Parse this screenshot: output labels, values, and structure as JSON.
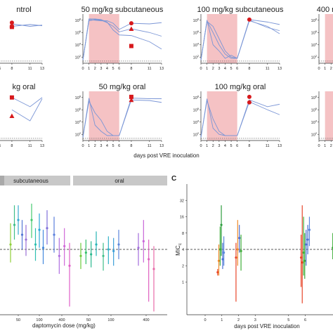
{
  "figure": {
    "xlabel_top": "days post VRE inoculation",
    "panel_letter_c": "C"
  },
  "colors": {
    "line": "#7b96d6",
    "marker": "#d7191c",
    "shade": "#f5c2c4",
    "strip": "#c8c8c8"
  },
  "chart_data": [
    {
      "type": "line",
      "section": "top-left timecourse panels (log10 VRE density vs day)",
      "yscale": "log",
      "y_ticks": [
        "10^2",
        "10^4",
        "10^6",
        "10^8"
      ],
      "x_ticks": [
        0,
        1,
        2,
        3,
        4,
        5,
        6,
        8,
        11,
        13
      ],
      "xlim": [
        0,
        13
      ],
      "ylim_log10": [
        1,
        9
      ],
      "panels": [
        {
          "title": "ntrol",
          "shade": null,
          "series": [
            {
              "x": [
                8,
                11,
                13
              ],
              "y_log10": [
                7.0,
                7.3,
                7.1
              ]
            },
            {
              "x": [
                8,
                11,
                13
              ],
              "y_log10": [
                7.4,
                7.0,
                7.2
              ]
            }
          ],
          "markers": [
            {
              "shape": "circle",
              "x": 8,
              "y_log10": 7.6
            },
            {
              "shape": "triangle",
              "x": 8,
              "y_log10": 7.2
            },
            {
              "shape": "square",
              "x": 8,
              "y_log10": 6.9
            }
          ]
        },
        {
          "title": "50 mg/kg subcutaneous",
          "shade": [
            1,
            6
          ],
          "series": [
            {
              "x": [
                0,
                1,
                2,
                3,
                4,
                5,
                6,
                8,
                11,
                13
              ],
              "y_log10": [
                1.5,
                8.1,
                8.0,
                7.9,
                7.9,
                7.5,
                6.5,
                7.5,
                7.4,
                7.6
              ]
            },
            {
              "x": [
                0,
                1,
                2,
                3,
                4,
                5,
                6,
                8,
                11,
                13
              ],
              "y_log10": [
                1.5,
                7.9,
                8.1,
                8.0,
                7.6,
                7.0,
                6.1,
                6.6,
                6.0,
                5.4
              ]
            },
            {
              "x": [
                0,
                1,
                2,
                3,
                4,
                5,
                6,
                8,
                11,
                13
              ],
              "y_log10": [
                1.5,
                8.2,
                8.2,
                8.1,
                7.7,
                6.4,
                5.6,
                5.5,
                4.5,
                3.3
              ]
            }
          ],
          "markers": [
            {
              "shape": "circle",
              "x": 8,
              "y_log10": 7.5
            },
            {
              "shape": "triangle",
              "x": 8,
              "y_log10": 6.6
            },
            {
              "shape": "square",
              "x": 8,
              "y_log10": 3.8
            }
          ]
        },
        {
          "title": "100 mg/kg subcutaneous",
          "shade": [
            1,
            6
          ],
          "series": [
            {
              "x": [
                0,
                1,
                2,
                3,
                4,
                5,
                6,
                8,
                11,
                13
              ],
              "y_log10": [
                1.5,
                8.0,
                4.0,
                3.0,
                1.8,
                2.3,
                1.8,
                8.1,
                7.7,
                7.3
              ]
            },
            {
              "x": [
                0,
                1,
                2,
                3,
                4,
                5,
                6,
                8,
                11,
                13
              ],
              "y_log10": [
                1.5,
                7.8,
                7.0,
                5.0,
                3.0,
                2.0,
                1.8,
                8.0,
                6.8,
                6.3
              ]
            },
            {
              "x": [
                0,
                1,
                2,
                3,
                4,
                5,
                6,
                8,
                11,
                13
              ],
              "y_log10": [
                1.5,
                7.9,
                6.0,
                4.0,
                2.5,
                1.8,
                1.8,
                7.9,
                7.0,
                5.8
              ]
            }
          ],
          "markers": [
            {
              "shape": "circle",
              "x": 8,
              "y_log10": 8.1
            }
          ]
        },
        {
          "title": "400 m",
          "shade": [
            1,
            6
          ],
          "series": [],
          "markers": []
        },
        {
          "title": "kg oral",
          "shade": null,
          "series": [
            {
              "x": [
                8,
                11,
                13
              ],
              "y_log10": [
                8.0,
                6.5,
                8.0
              ]
            },
            {
              "x": [
                8,
                11,
                13
              ],
              "y_log10": [
                6.0,
                4.2,
                7.8
              ]
            }
          ],
          "markers": [
            {
              "shape": "square",
              "x": 8,
              "y_log10": 8.0
            },
            {
              "shape": "triangle",
              "x": 8,
              "y_log10": 5.0
            }
          ]
        },
        {
          "title": "50 mg/kg oral",
          "shade": [
            1,
            6
          ],
          "series": [
            {
              "x": [
                0,
                1,
                2,
                3,
                4,
                5,
                6,
                8,
                11,
                13
              ],
              "y_log10": [
                1.5,
                7.9,
                3.5,
                2.5,
                1.8,
                1.8,
                1.8,
                7.9,
                7.8,
                7.8
              ]
            },
            {
              "x": [
                0,
                1,
                2,
                3,
                4,
                5,
                6,
                8,
                11,
                13
              ],
              "y_log10": [
                1.5,
                7.4,
                5.5,
                4.3,
                2.5,
                1.8,
                1.8,
                7.6,
                7.5,
                7.2
              ]
            }
          ],
          "markers": [
            {
              "shape": "square",
              "x": 8,
              "y_log10": 8.1
            },
            {
              "shape": "triangle",
              "x": 8,
              "y_log10": 7.6
            }
          ]
        },
        {
          "title": "100 mg/kg oral",
          "shade": [
            1,
            6
          ],
          "series": [
            {
              "x": [
                0,
                1,
                2,
                3,
                4,
                5,
                6,
                8,
                11,
                13
              ],
              "y_log10": [
                1.5,
                7.8,
                3.0,
                2.0,
                1.8,
                1.8,
                1.8,
                7.6,
                6.5,
                6.9
              ]
            },
            {
              "x": [
                0,
                1,
                2,
                3,
                4,
                5,
                6,
                8,
                11,
                13
              ],
              "y_log10": [
                1.5,
                7.5,
                4.5,
                2.5,
                1.8,
                1.8,
                1.8,
                7.3,
                6.0,
                5.2
              ]
            }
          ],
          "markers": [
            {
              "shape": "circle",
              "x": 8,
              "y_log10": 8.1
            },
            {
              "shape": "circle",
              "x": 8,
              "y_log10": 7.2
            }
          ]
        },
        {
          "title": "",
          "shade": [
            1,
            6
          ],
          "series": [],
          "markers": []
        }
      ]
    },
    {
      "type": "scatter",
      "section": "bottom-left panel B (MIC vs daptomycin dose)",
      "strip_labels": [
        "subcutaneous",
        "oral"
      ],
      "xlabel": "daptomycin dose (mg/kg)",
      "x_ticks": [
        "50",
        "100",
        "400",
        "50",
        "100",
        "400"
      ],
      "ylim_log2": [
        -2,
        6
      ],
      "reference_log2": 2,
      "groups": [
        {
          "route": "subcutaneous",
          "dose": 50,
          "points": [
            {
              "c": "#8fcf3a",
              "y": 2.3,
              "lo": 1.2,
              "hi": 3.6
            },
            {
              "c": "#3fbf8a",
              "y": 3.5,
              "lo": 2.6,
              "hi": 4.7
            },
            {
              "c": "#37a9d1",
              "y": 3.8,
              "lo": 2.9,
              "hi": 4.7
            },
            {
              "c": "#5577d5",
              "y": 2.9,
              "lo": 2.0,
              "hi": 3.8
            },
            {
              "c": "#9b6fd6",
              "y": 2.6,
              "lo": 1.6,
              "hi": 3.5
            }
          ]
        },
        {
          "route": "subcutaneous",
          "dose": 100,
          "points": [
            {
              "c": "#44c96e",
              "y": 3.8,
              "lo": 2.7,
              "hi": 4.8
            },
            {
              "c": "#2fbfb0",
              "y": 2.3,
              "lo": 1.3,
              "hi": 3.3
            },
            {
              "c": "#29a7d8",
              "y": 3.2,
              "lo": 2.1,
              "hi": 4.2
            },
            {
              "c": "#4488dd",
              "y": 2.1,
              "lo": 1.1,
              "hi": 3.2
            },
            {
              "c": "#7f6fda",
              "y": 3.3,
              "lo": 2.3,
              "hi": 4.4
            }
          ]
        },
        {
          "route": "subcutaneous",
          "dose": 400,
          "points": [
            {
              "c": "#5b7fdc",
              "y": 2.9,
              "lo": 1.8,
              "hi": 4.0
            },
            {
              "c": "#b06fe0",
              "y": 1.6,
              "lo": 0.5,
              "hi": 2.7
            },
            {
              "c": "#d068d8",
              "y": 2.2,
              "lo": 1.0,
              "hi": 3.3
            },
            {
              "c": "#e05fc8",
              "y": 1.0,
              "lo": -1.5,
              "hi": 2.4
            }
          ]
        },
        {
          "route": "oral",
          "dose": 50,
          "points": [
            {
              "c": "#6ccb3a",
              "y": 1.6,
              "lo": 0.8,
              "hi": 2.4
            },
            {
              "c": "#34c06a",
              "y": 1.8,
              "lo": 1.1,
              "hi": 2.6
            },
            {
              "c": "#2ab88f",
              "y": 1.7,
              "lo": 0.9,
              "hi": 2.5
            },
            {
              "c": "#27b3b5",
              "y": 2.3,
              "lo": 1.6,
              "hi": 3.1
            }
          ]
        },
        {
          "route": "oral",
          "dose": 100,
          "points": [
            {
              "c": "#3fbf8a",
              "y": 1.6,
              "lo": 0.7,
              "hi": 2.4
            },
            {
              "c": "#33b3c8",
              "y": 2.0,
              "lo": 1.1,
              "hi": 2.8
            },
            {
              "c": "#3d9fd8",
              "y": 1.9,
              "lo": 1.0,
              "hi": 2.7
            },
            {
              "c": "#5a86db",
              "y": 2.3,
              "lo": 1.4,
              "hi": 3.2
            }
          ]
        },
        {
          "route": "oral",
          "dose": 400,
          "points": [
            {
              "c": "#a46fdc",
              "y": 2.1,
              "lo": 1.0,
              "hi": 3.0
            },
            {
              "c": "#c866d8",
              "y": 2.5,
              "lo": 1.2,
              "hi": 3.8
            },
            {
              "c": "#e060c0",
              "y": 1.4,
              "lo": -1.2,
              "hi": 2.6
            },
            {
              "c": "#e86aa8",
              "y": 0.8,
              "lo": -1.8,
              "hi": 2.2
            }
          ]
        }
      ]
    },
    {
      "type": "scatter",
      "section": "bottom-right panel C (MIC vs day)",
      "ylabel": "MIC_c",
      "xlabel": "days post VRE inoculation",
      "y_ticks": [
        "1",
        "2",
        "4",
        "8",
        "16",
        "32"
      ],
      "x_ticks": [
        "0",
        "1",
        "2",
        "3",
        "5",
        "6",
        "8"
      ],
      "reference": 4,
      "points": [
        {
          "x": 0.75,
          "y_log2": 0.6,
          "lo": 0.4,
          "hi": 0.8,
          "c": "#e8462a"
        },
        {
          "x": 0.82,
          "y_log2": 1.3,
          "lo": 0.4,
          "hi": 2.3,
          "c": "#f08a2a"
        },
        {
          "x": 0.9,
          "y_log2": 2.0,
          "lo": 1.0,
          "hi": 3.4,
          "c": "#3fae3a"
        },
        {
          "x": 0.97,
          "y_log2": 3.5,
          "lo": 1.6,
          "hi": 4.7,
          "c": "#2e9d3f"
        },
        {
          "x": 1.05,
          "y_log2": 1.4,
          "lo": 0.8,
          "hi": 2.4,
          "c": "#4a6fd2"
        },
        {
          "x": 1.12,
          "y_log2": 1.8,
          "lo": 1.0,
          "hi": 2.8,
          "c": "#5a86db"
        },
        {
          "x": 1.85,
          "y_log2": 1.5,
          "lo": -1.2,
          "hi": 2.4,
          "c": "#e8462a"
        },
        {
          "x": 1.95,
          "y_log2": 2.0,
          "lo": 1.0,
          "hi": 3.8,
          "c": "#f08a2a"
        },
        {
          "x": 2.05,
          "y_log2": 2.7,
          "lo": 1.8,
          "hi": 3.5,
          "c": "#4a6fd2"
        },
        {
          "x": 2.15,
          "y_log2": 1.9,
          "lo": 0.7,
          "hi": 2.9,
          "c": "#3fae3a"
        },
        {
          "x": 5.75,
          "y_log2": 1.5,
          "lo": -0.3,
          "hi": 2.9,
          "c": "#e8462a"
        },
        {
          "x": 5.82,
          "y_log2": 1.2,
          "lo": -1.3,
          "hi": 4.7,
          "c": "#e8462a"
        },
        {
          "x": 5.9,
          "y_log2": 1.8,
          "lo": 0.4,
          "hi": 4.0,
          "c": "#3fae3a"
        },
        {
          "x": 5.97,
          "y_log2": 1.3,
          "lo": 0.2,
          "hi": 3.0,
          "c": "#3fae3a"
        },
        {
          "x": 6.05,
          "y_log2": 2.3,
          "lo": 1.0,
          "hi": 3.2,
          "c": "#4a6fd2"
        },
        {
          "x": 6.15,
          "y_log2": 2.6,
          "lo": 1.7,
          "hi": 3.5,
          "c": "#4a6fd2"
        },
        {
          "x": 6.25,
          "y_log2": 3.2,
          "lo": 2.2,
          "hi": 4.0,
          "c": "#5a86db"
        },
        {
          "x": 7.65,
          "y_log2": 2.1,
          "lo": 1.4,
          "hi": 3.0,
          "c": "#3fae3a"
        },
        {
          "x": 7.75,
          "y_log2": 2.6,
          "lo": 1.6,
          "hi": 4.0,
          "c": "#2e9d3f"
        },
        {
          "x": 7.85,
          "y_log2": 3.6,
          "lo": 2.5,
          "hi": 4.3,
          "c": "#4a6fd2"
        },
        {
          "x": 7.95,
          "y_log2": 2.9,
          "lo": 2.0,
          "hi": 3.9,
          "c": "#6a7ed8"
        }
      ]
    }
  ]
}
